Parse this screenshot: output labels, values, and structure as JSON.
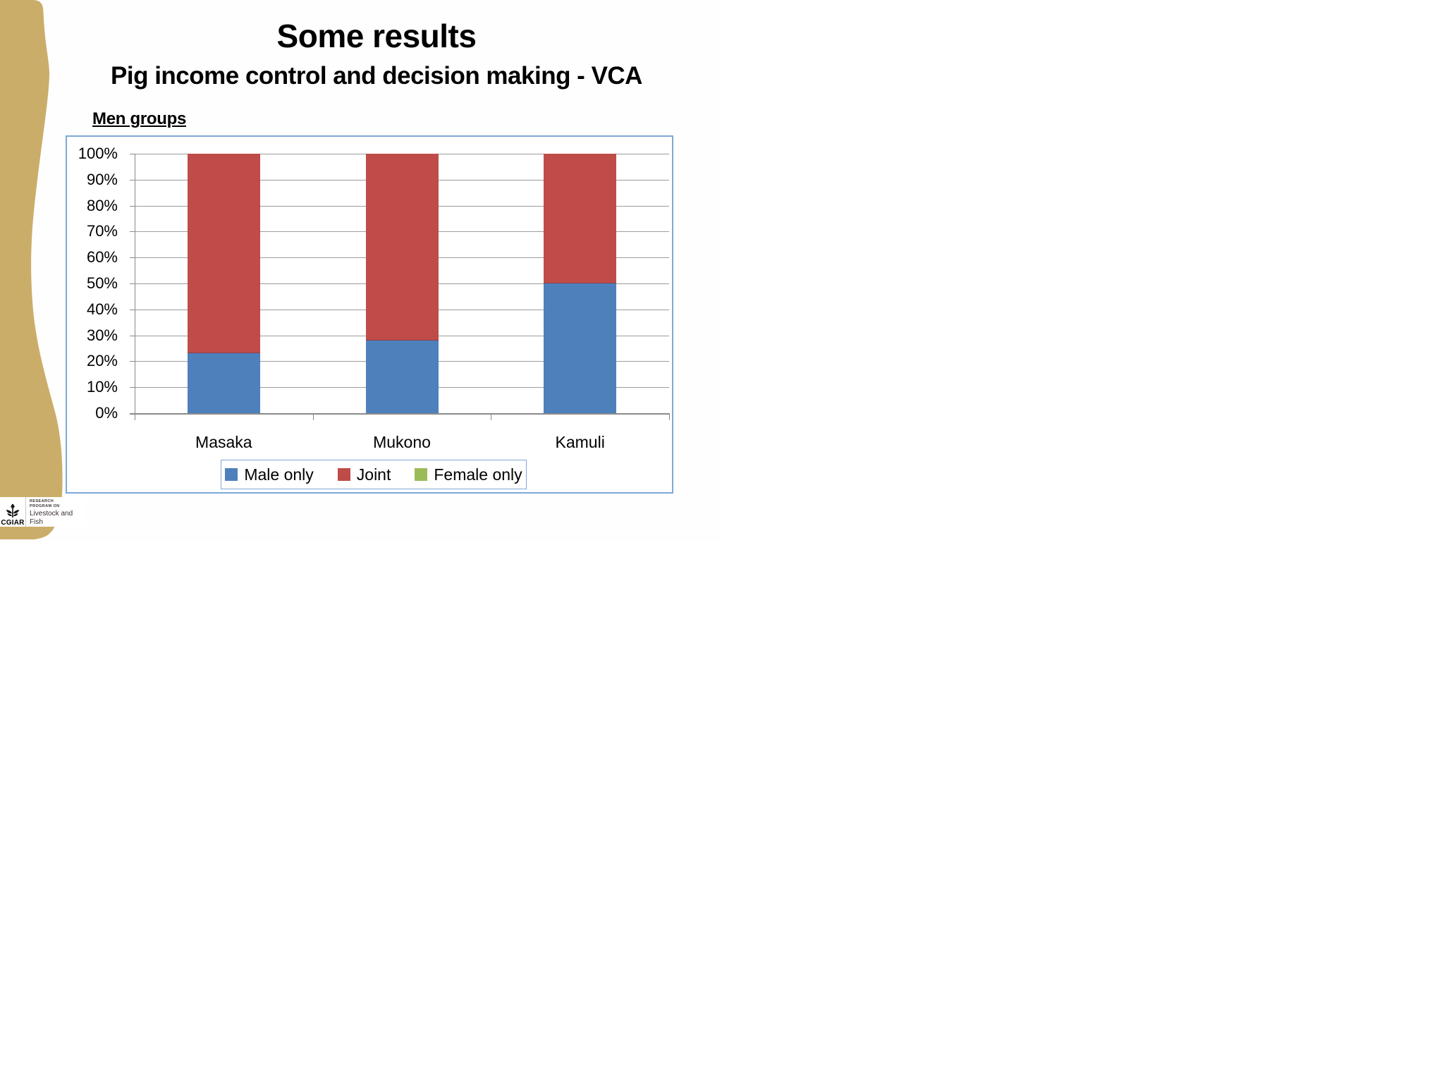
{
  "slide": {
    "title": "Some results",
    "subtitle": "Pig income control and decision making - VCA",
    "section_label": "Men groups"
  },
  "chart_data": {
    "type": "bar",
    "variant": "stacked-percent-column",
    "title": "",
    "xlabel": "",
    "ylabel": "",
    "categories": [
      "Masaka",
      "Mukono",
      "Kamuli"
    ],
    "series": [
      {
        "name": "Male only",
        "color": "#4E80BC",
        "values": [
          23,
          28,
          50
        ]
      },
      {
        "name": "Joint",
        "color": "#BF4C49",
        "values": [
          77,
          72,
          50
        ]
      },
      {
        "name": "Female only",
        "color": "#9BBB59",
        "values": [
          0,
          0,
          0
        ]
      }
    ],
    "y_axis": {
      "min": 0,
      "max": 100,
      "step": 10,
      "tick_labels": [
        "0%",
        "10%",
        "20%",
        "30%",
        "40%",
        "50%",
        "60%",
        "70%",
        "80%",
        "90%",
        "100%"
      ]
    },
    "grid": true,
    "legend_position": "bottom"
  },
  "footer": {
    "cgiar": "CGIAR",
    "program_line1": "RESEARCH",
    "program_line2": "PROGRAM ON",
    "program_name": "Livestock and Fish"
  },
  "theme": {
    "ribbon_color": "#CBAD6A",
    "chart_border_color": "#7FA8D8",
    "gridline_color": "#9c9c9c",
    "axis_color": "#8a8a8a"
  }
}
